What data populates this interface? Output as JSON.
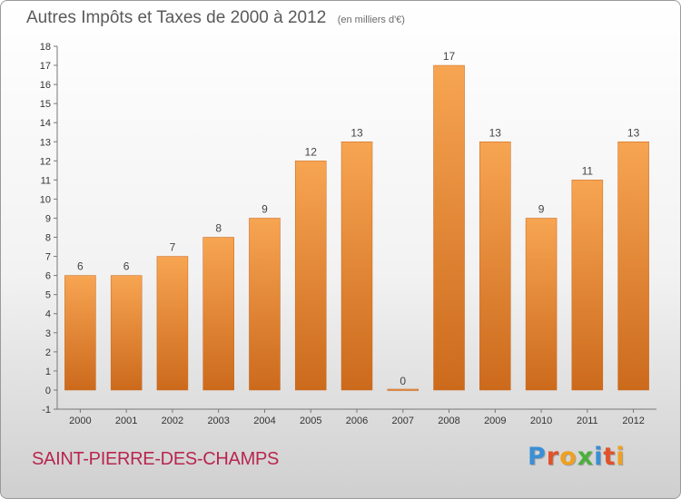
{
  "chart_data": {
    "type": "bar",
    "title": "Autres Impôts et Taxes de 2000 à 2012",
    "unit_note": "(en milliers d'€)",
    "categories": [
      "2000",
      "2001",
      "2002",
      "2003",
      "2004",
      "2005",
      "2006",
      "2007",
      "2008",
      "2009",
      "2010",
      "2011",
      "2012"
    ],
    "values": [
      6,
      6,
      7,
      8,
      9,
      12,
      13,
      0,
      17,
      13,
      9,
      11,
      13
    ],
    "ylim": [
      -1,
      18
    ],
    "yticks": [
      -1,
      0,
      1,
      2,
      3,
      4,
      5,
      6,
      7,
      8,
      9,
      10,
      11,
      12,
      13,
      14,
      15,
      16,
      17,
      18
    ],
    "grid": false,
    "legend": "none",
    "bar_color_top": "#f7a552",
    "bar_color_bottom": "#cc6a1c"
  },
  "footer": {
    "commune": "SAINT-PIERRE-DES-CHAMPS",
    "logo_letters": [
      {
        "ch": "P",
        "color": "#3a8fd6"
      },
      {
        "ch": "r",
        "color": "#e0522a"
      },
      {
        "ch": "o",
        "color": "#f0a020"
      },
      {
        "ch": "x",
        "color": "#4caf3c"
      },
      {
        "ch": "i",
        "color": "#3a8fd6"
      },
      {
        "ch": "t",
        "color": "#e0522a"
      },
      {
        "ch": "i",
        "color": "#f0a020"
      }
    ]
  }
}
